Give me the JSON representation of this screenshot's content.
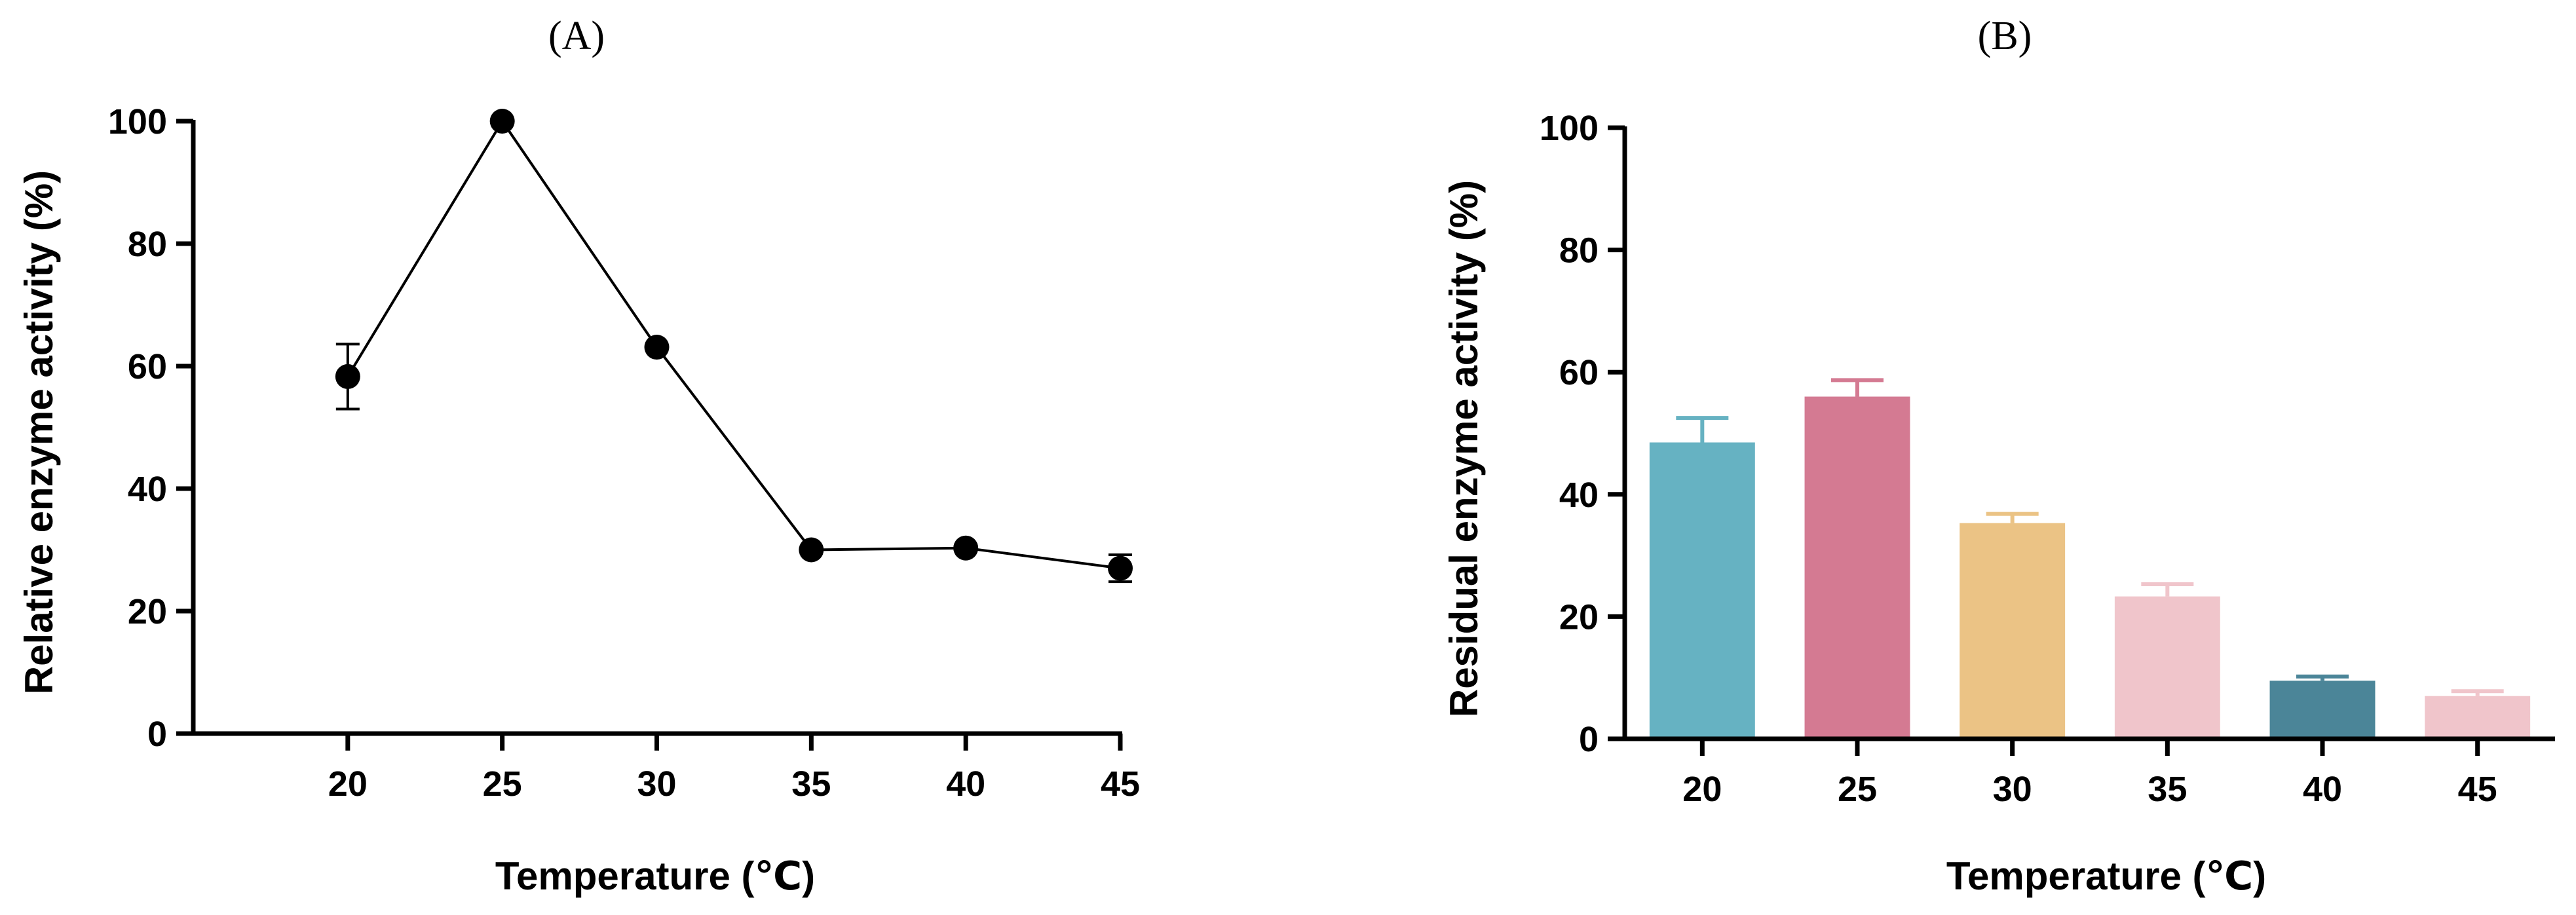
{
  "chart_data": [
    {
      "panel": "(A)",
      "type": "line",
      "xlabel": "Temperature (℃)",
      "ylabel": "Relative enzyme activity (%)",
      "ylim": [
        0,
        100
      ],
      "yticks": [
        0,
        20,
        40,
        60,
        80,
        100
      ],
      "xticks": [
        20,
        25,
        30,
        35,
        40,
        45
      ],
      "xlim": [
        15,
        45
      ],
      "x": [
        20,
        25,
        30,
        35,
        40,
        45
      ],
      "y": [
        58.3,
        100,
        63.1,
        30.0,
        30.3,
        27.0
      ],
      "error": [
        5.3,
        0,
        0,
        0,
        0,
        2.2
      ],
      "marker_color": "#000000",
      "grid": false
    },
    {
      "panel": "(B)",
      "type": "bar",
      "xlabel": "Temperature (℃)",
      "ylabel": "Residual enzyme activity (%)",
      "ylim": [
        0,
        100
      ],
      "yticks": [
        0,
        20,
        40,
        60,
        80,
        100
      ],
      "categories": [
        "20",
        "25",
        "30",
        "35",
        "40",
        "45"
      ],
      "values": [
        48.5,
        56.0,
        35.3,
        23.3,
        9.5,
        7.0
      ],
      "error": [
        4.0,
        2.7,
        1.5,
        2.0,
        0.7,
        0.8
      ],
      "colors": [
        "#66B2C2",
        "#D47A92",
        "#EBC385",
        "#F0C5CB",
        "#4B8598",
        "#F0C5CB"
      ],
      "grid": false
    }
  ]
}
